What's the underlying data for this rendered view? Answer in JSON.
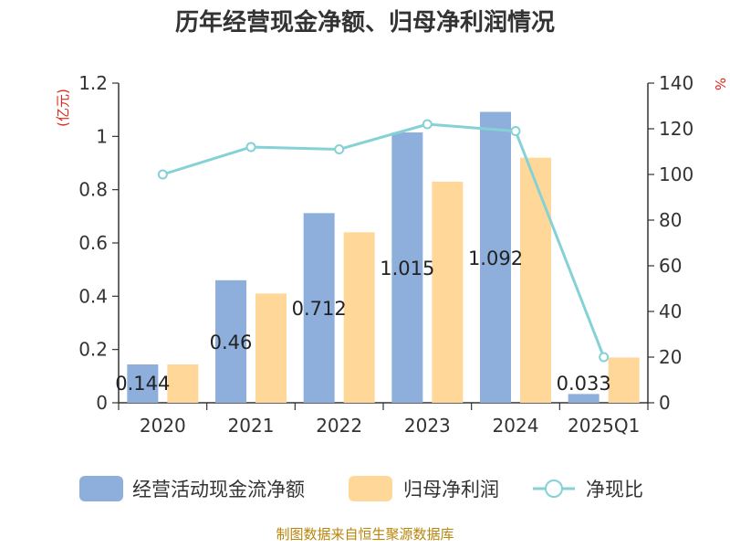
{
  "chart_data": {
    "type": "bar",
    "title": "历年经营现金净额、归母净利润情况",
    "categories": [
      "2020",
      "2021",
      "2022",
      "2023",
      "2024",
      "2025Q1"
    ],
    "series": [
      {
        "name": "经营活动现金流净额",
        "axis": "left",
        "kind": "bar",
        "color": "#8eafdc",
        "values": [
          0.144,
          0.46,
          0.712,
          1.015,
          1.092,
          0.033
        ]
      },
      {
        "name": "归母净利润",
        "axis": "left",
        "kind": "bar",
        "color": "#ffd899",
        "values": [
          0.144,
          0.41,
          0.64,
          0.83,
          0.92,
          0.17
        ]
      },
      {
        "name": "净现比",
        "axis": "right",
        "kind": "line",
        "color": "#84d1d6",
        "values": [
          100,
          112,
          111,
          122,
          119,
          20
        ]
      }
    ],
    "y_left": {
      "unit": "(亿元)",
      "ylim": [
        0,
        1.2
      ],
      "ticks": [
        "0",
        "0.2",
        "0.4",
        "0.6",
        "0.8",
        "1",
        "1.2"
      ]
    },
    "y_right": {
      "unit": "%",
      "ylim": [
        0,
        140
      ],
      "ticks": [
        "0",
        "20",
        "40",
        "60",
        "80",
        "100",
        "120",
        "140"
      ]
    },
    "data_labels": [
      "0.144",
      "0.46",
      "0.712",
      "1.015",
      "1.092",
      "0.033"
    ],
    "grid": false,
    "legend_position": "bottom",
    "source": "制图数据来自恒生聚源数据库"
  }
}
